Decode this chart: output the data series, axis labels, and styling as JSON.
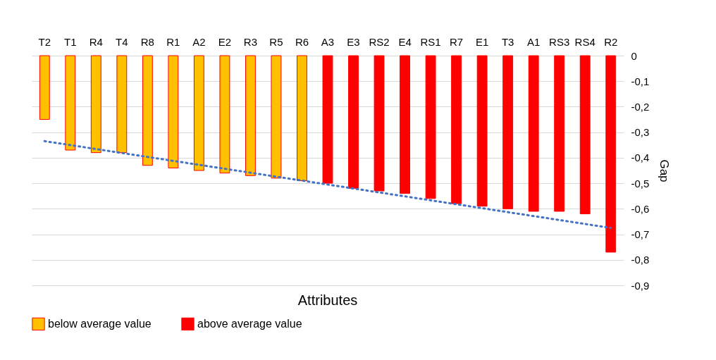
{
  "chart_data": {
    "type": "bar",
    "xlabel": "Attributes",
    "ylabel": "Gap",
    "categories": [
      "T2",
      "T1",
      "R4",
      "T4",
      "R8",
      "R1",
      "A2",
      "E2",
      "R3",
      "R5",
      "R6",
      "A3",
      "E3",
      "RS2",
      "E4",
      "RS1",
      "R7",
      "E1",
      "T3",
      "A1",
      "RS3",
      "RS4",
      "R2"
    ],
    "series": [
      {
        "name": "below average value",
        "color": "#ffc000",
        "values": [
          -0.25,
          -0.37,
          -0.38,
          -0.38,
          -0.43,
          -0.44,
          -0.45,
          -0.46,
          -0.47,
          -0.48,
          -0.49,
          null,
          null,
          null,
          null,
          null,
          null,
          null,
          null,
          null,
          null,
          null,
          null
        ]
      },
      {
        "name": "above average value",
        "color": "#ff0000",
        "values": [
          null,
          null,
          null,
          null,
          null,
          null,
          null,
          null,
          null,
          null,
          null,
          -0.5,
          -0.52,
          -0.53,
          -0.54,
          -0.56,
          -0.58,
          -0.59,
          -0.6,
          -0.61,
          -0.61,
          -0.62,
          -0.77
        ]
      },
      {
        "type": "line",
        "color": "#4472c4",
        "x": [
          "T2",
          "R2"
        ],
        "values": [
          -0.335,
          -0.675
        ],
        "line_style": "dotted"
      }
    ],
    "ylim": [
      -0.9,
      0
    ],
    "yticks": [
      {
        "value": 0,
        "label": "0"
      },
      {
        "value": -0.1,
        "label": "-0,1"
      },
      {
        "value": -0.2,
        "label": "-0,2"
      },
      {
        "value": -0.3,
        "label": "-0,3"
      },
      {
        "value": -0.4,
        "label": "-0,4"
      },
      {
        "value": -0.5,
        "label": "-0,5"
      },
      {
        "value": -0.6,
        "label": "-0,6"
      },
      {
        "value": -0.7,
        "label": "-0,7"
      },
      {
        "value": -0.8,
        "label": "-0,8"
      },
      {
        "value": -0.9,
        "label": "-0,9"
      }
    ],
    "grid": "y",
    "legend": "bottom"
  }
}
